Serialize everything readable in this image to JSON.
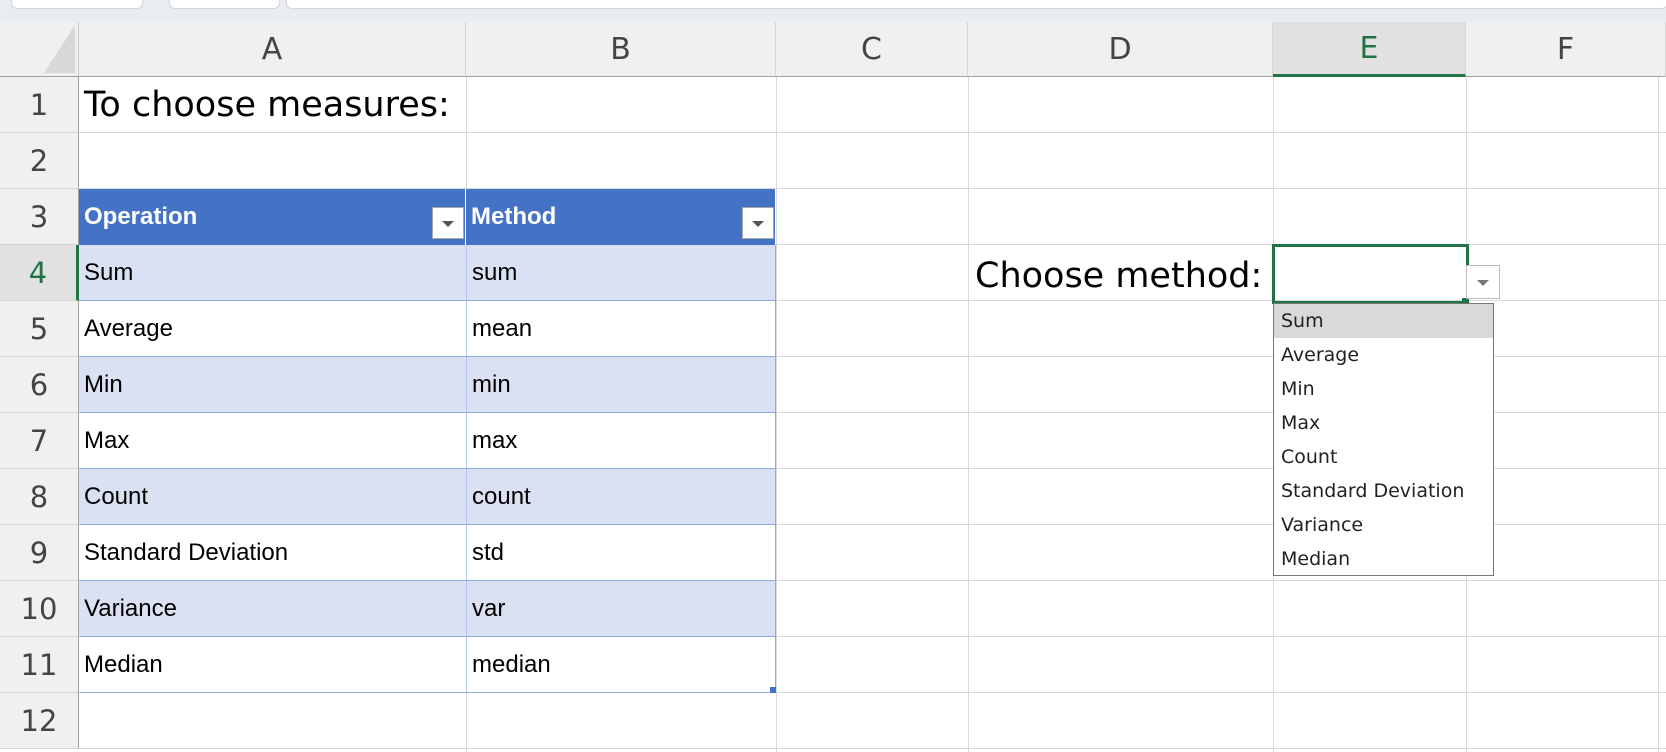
{
  "columns": [
    "A",
    "B",
    "C",
    "D",
    "E",
    "F"
  ],
  "selected_column": "E",
  "rows": [
    "1",
    "2",
    "3",
    "4",
    "5",
    "6",
    "7",
    "8",
    "9",
    "10",
    "11",
    "12"
  ],
  "selected_row": "4",
  "title": "To choose measures:",
  "table": {
    "headers": [
      "Operation",
      "Method"
    ],
    "rows": [
      [
        "Sum",
        "sum"
      ],
      [
        "Average",
        "mean"
      ],
      [
        "Min",
        "min"
      ],
      [
        "Max",
        "max"
      ],
      [
        "Count",
        "count"
      ],
      [
        "Standard Deviation",
        "std"
      ],
      [
        "Variance",
        "var"
      ],
      [
        "Median",
        "median"
      ]
    ],
    "header_color": "#4472c4",
    "band_color": "#d9e1f2"
  },
  "choose_label": "Choose method:",
  "selected_cell_value": "",
  "dropdown": {
    "options": [
      "Sum",
      "Average",
      "Min",
      "Max",
      "Count",
      "Standard Deviation",
      "Variance",
      "Median"
    ],
    "highlighted": "Sum"
  },
  "accent_color": "#217346"
}
